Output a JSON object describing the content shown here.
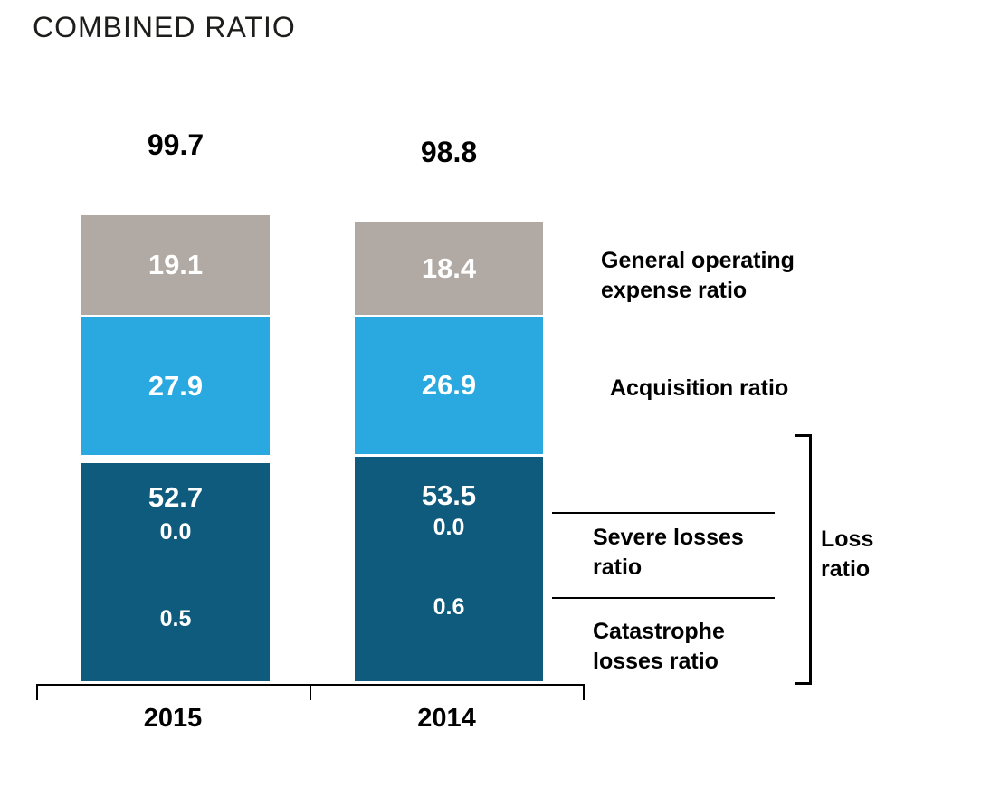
{
  "chart": {
    "title": "COMBINED RATIO"
  },
  "bars": {
    "y2015": {
      "year": "2015",
      "total": "99.7",
      "general_operating": "19.1",
      "acquisition": "27.9",
      "loss": "52.7",
      "severe": "0.0",
      "catastrophe": "0.5"
    },
    "y2014": {
      "year": "2014",
      "total": "98.8",
      "general_operating": "18.4",
      "acquisition": "26.9",
      "loss": "53.5",
      "severe": "0.0",
      "catastrophe": "0.6"
    }
  },
  "labels": {
    "general_operating": "General operating expense ratio",
    "acquisition": "Acquisition ratio",
    "severe": "Severe losses ratio",
    "catastrophe": "Catastrophe losses ratio",
    "loss": "Loss ratio"
  },
  "colors": {
    "general_operating_segment": "#b1aaa4",
    "acquisition_segment": "#29a9e0",
    "loss_segment": "#0f5b7d",
    "value_text": "#ffffff",
    "label_text": "#000000"
  },
  "chart_data": {
    "type": "bar",
    "stacked": true,
    "title": "COMBINED RATIO",
    "categories": [
      "2015",
      "2014"
    ],
    "totals": [
      99.7,
      98.8
    ],
    "series": [
      {
        "name": "Loss ratio",
        "values": [
          52.7,
          53.5
        ],
        "color": "#0f5b7d"
      },
      {
        "name": "Acquisition ratio",
        "values": [
          27.9,
          26.9
        ],
        "color": "#29a9e0"
      },
      {
        "name": "General operating expense ratio",
        "values": [
          19.1,
          18.4
        ],
        "color": "#b1aaa4"
      }
    ],
    "annotations": [
      {
        "name": "Severe losses ratio",
        "values": [
          "0.0",
          "0.0"
        ]
      },
      {
        "name": "Catastrophe losses ratio",
        "values": [
          "0.5",
          "0.6"
        ]
      }
    ],
    "legend_position": "right",
    "grid": false,
    "value_labels": "inside"
  }
}
